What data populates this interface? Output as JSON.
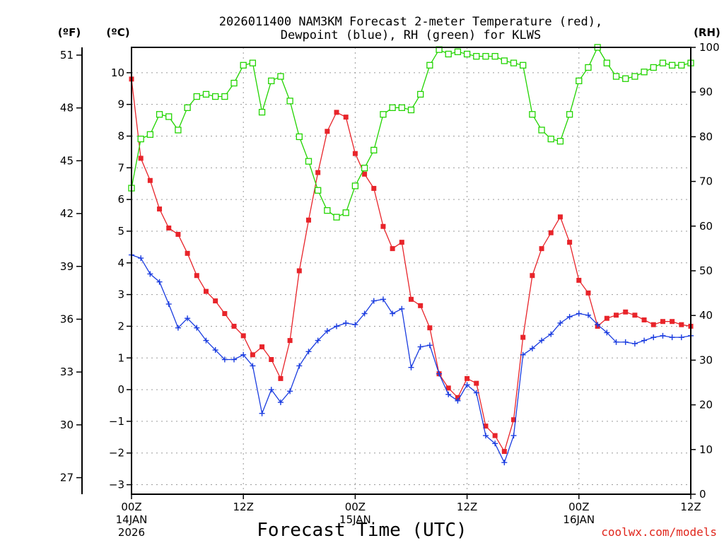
{
  "chart_data": {
    "type": "line",
    "title_line1": "2026011400 NAM3KM Forecast 2-meter Temperature (red),",
    "title_line2": "Dewpoint (blue), RH (green) for KLWS",
    "units": {
      "fahrenheit": "(ºF)",
      "celsius": "(ºC)",
      "rh": "(RH)"
    },
    "xlabel": "Forecast Time (UTC)",
    "credit": "coolwx.com/models",
    "x_range_hours": [
      0,
      60
    ],
    "x_ticks": [
      {
        "hour": 0,
        "label": "00Z",
        "day": "14JAN",
        "year": "2026"
      },
      {
        "hour": 12,
        "label": "12Z",
        "day": "",
        "year": ""
      },
      {
        "hour": 24,
        "label": "00Z",
        "day": "15JAN",
        "year": ""
      },
      {
        "hour": 36,
        "label": "12Z",
        "day": "",
        "year": ""
      },
      {
        "hour": 48,
        "label": "00Z",
        "day": "16JAN",
        "year": ""
      },
      {
        "hour": 60,
        "label": "12Z",
        "day": "",
        "year": ""
      }
    ],
    "celsius_axis": {
      "range": [
        -3.3,
        10.8
      ],
      "ticks": [
        -3,
        -2,
        -1,
        0,
        1,
        2,
        3,
        4,
        5,
        6,
        7,
        8,
        9,
        10
      ],
      "labels": [
        "−3",
        "−2",
        "−1",
        "0",
        "1",
        "2",
        "3",
        "4",
        "5",
        "6",
        "7",
        "8",
        "9",
        "10"
      ]
    },
    "fahrenheit_axis": {
      "ticks": [
        27,
        30,
        33,
        36,
        39,
        42,
        45,
        48,
        51
      ],
      "labels": [
        "27",
        "30",
        "33",
        "36",
        "39",
        "42",
        "45",
        "48",
        "51"
      ]
    },
    "rh_axis": {
      "range": [
        0,
        100
      ],
      "ticks": [
        0,
        10,
        20,
        30,
        40,
        50,
        60,
        70,
        80,
        90,
        100
      ],
      "labels": [
        "0",
        "10",
        "20",
        "30",
        "40",
        "50",
        "60",
        "70",
        "80",
        "90",
        "100"
      ]
    },
    "colors": {
      "temperature": "#e8242a",
      "dewpoint": "#1a3ce0",
      "rh": "#22d400",
      "grid": "#9a9a9a",
      "credit": "#e0251b"
    },
    "series": [
      {
        "name": "Temperature (°C)",
        "axis": "celsius",
        "marker": "filled-square",
        "hours": [
          0,
          1,
          2,
          3,
          4,
          5,
          6,
          7,
          8,
          9,
          10,
          11,
          12,
          13,
          14,
          15,
          16,
          17,
          18,
          19,
          20,
          21,
          22,
          23,
          24,
          25,
          26,
          27,
          28,
          29,
          30,
          31,
          32,
          33,
          34,
          35,
          36,
          37,
          38,
          39,
          40,
          41,
          42,
          43,
          44,
          45,
          46,
          47,
          48,
          49,
          50,
          51,
          52,
          53,
          54,
          55,
          56,
          57,
          58,
          59,
          60
        ],
        "values": [
          9.8,
          7.3,
          6.6,
          5.7,
          5.1,
          4.9,
          4.3,
          3.6,
          3.1,
          2.8,
          2.4,
          2.0,
          1.7,
          1.1,
          1.35,
          0.95,
          0.35,
          1.55,
          3.75,
          5.35,
          6.85,
          8.15,
          8.75,
          8.6,
          7.45,
          6.8,
          6.35,
          5.15,
          4.45,
          4.65,
          2.85,
          2.65,
          1.95,
          0.5,
          0.05,
          -0.25,
          0.35,
          0.2,
          -1.15,
          -1.45,
          -1.95,
          -0.95,
          1.65,
          3.6,
          4.45,
          4.95,
          5.45,
          4.65,
          3.45,
          3.05,
          2.0,
          2.25,
          2.35,
          2.45,
          2.35,
          2.2,
          2.05,
          2.15,
          2.15,
          2.05,
          2.0
        ]
      },
      {
        "name": "Dewpoint (°C)",
        "axis": "celsius",
        "marker": "plus",
        "hours": [
          0,
          1,
          2,
          3,
          4,
          5,
          6,
          7,
          8,
          9,
          10,
          11,
          12,
          13,
          14,
          15,
          16,
          17,
          18,
          19,
          20,
          21,
          22,
          23,
          24,
          25,
          26,
          27,
          28,
          29,
          30,
          31,
          32,
          33,
          34,
          35,
          36,
          37,
          38,
          39,
          40,
          41,
          42,
          43,
          44,
          45,
          46,
          47,
          48,
          49,
          50,
          51,
          52,
          53,
          54,
          55,
          56,
          57,
          58,
          59,
          60
        ],
        "values": [
          4.25,
          4.15,
          3.65,
          3.4,
          2.7,
          1.95,
          2.25,
          1.95,
          1.55,
          1.25,
          0.95,
          0.95,
          1.1,
          0.75,
          -0.75,
          0.0,
          -0.4,
          -0.05,
          0.75,
          1.2,
          1.55,
          1.85,
          2.0,
          2.1,
          2.05,
          2.4,
          2.8,
          2.85,
          2.4,
          2.55,
          0.7,
          1.35,
          1.4,
          0.5,
          -0.15,
          -0.35,
          0.15,
          -0.1,
          -1.45,
          -1.7,
          -2.3,
          -1.45,
          1.1,
          1.3,
          1.55,
          1.75,
          2.1,
          2.3,
          2.4,
          2.35,
          2.05,
          1.8,
          1.5,
          1.5,
          1.45,
          1.55,
          1.65,
          1.7,
          1.65,
          1.65,
          1.7
        ]
      },
      {
        "name": "RH (%)",
        "axis": "rh",
        "marker": "open-square",
        "hours": [
          0,
          1,
          2,
          3,
          4,
          5,
          6,
          7,
          8,
          9,
          10,
          11,
          12,
          13,
          14,
          15,
          16,
          17,
          18,
          19,
          20,
          21,
          22,
          23,
          24,
          25,
          26,
          27,
          28,
          29,
          30,
          31,
          32,
          33,
          34,
          35,
          36,
          37,
          38,
          39,
          40,
          41,
          42,
          43,
          44,
          45,
          46,
          47,
          48,
          49,
          50,
          51,
          52,
          53,
          54,
          55,
          56,
          57,
          58,
          59,
          60
        ],
        "values": [
          68.5,
          79.5,
          80.5,
          85,
          84.5,
          81.5,
          86.5,
          89,
          89.5,
          89,
          89,
          92,
          96,
          96.5,
          85.5,
          92.5,
          93.5,
          88,
          80,
          74.5,
          68,
          63.5,
          62,
          63,
          69,
          73,
          77,
          85,
          86.5,
          86.5,
          86,
          89.5,
          96,
          99.5,
          98.5,
          99,
          98.5,
          98,
          98,
          98,
          97,
          96.5,
          96,
          85,
          81.5,
          79.5,
          79,
          85,
          92.5,
          95.5,
          100,
          96.5,
          93.5,
          93,
          93.5,
          94.5,
          95.5,
          96.5,
          96,
          96,
          96.5
        ]
      }
    ]
  }
}
